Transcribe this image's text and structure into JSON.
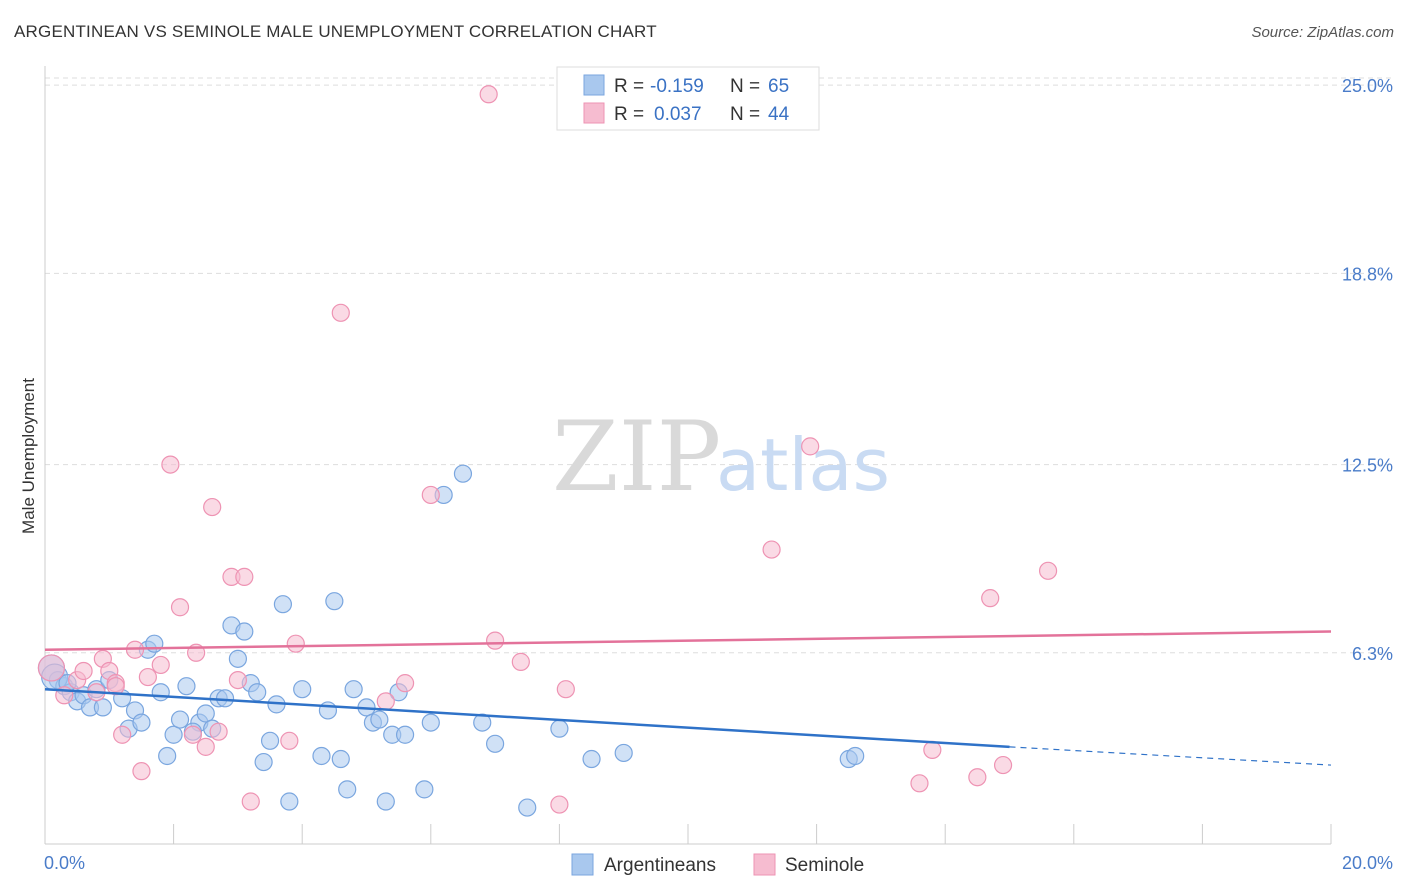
{
  "title": "ARGENTINEAN VS SEMINOLE MALE UNEMPLOYMENT CORRELATION CHART",
  "source": "Source: ZipAtlas.com",
  "watermark": {
    "zip": "ZIP",
    "atlas": "atlas"
  },
  "colors": {
    "blue_fill": "#a9c8ee",
    "blue_stroke": "#7aa6df",
    "blue_line": "#2f72c8",
    "pink_fill": "#f6bcd0",
    "pink_stroke": "#ee93b3",
    "pink_line": "#e3729a",
    "grid": "#dddddd",
    "tick_text": "#4a7cc9"
  },
  "legend": {
    "rows": [
      {
        "r_label": "R =",
        "r_value": "-0.159",
        "n_label": "N =",
        "n_value": "65",
        "series": "blue"
      },
      {
        "r_label": "R =",
        "r_value": "0.037",
        "n_label": "N =",
        "n_value": "44",
        "series": "pink"
      }
    ]
  },
  "chart_data": {
    "type": "scatter",
    "title": "ARGENTINEAN VS SEMINOLE MALE UNEMPLOYMENT CORRELATION CHART",
    "xlabel": "",
    "ylabel": "Male Unemployment",
    "xlim": [
      0,
      20
    ],
    "ylim": [
      0,
      25.5
    ],
    "x_tick_labels": [
      "0.0%",
      "20.0%"
    ],
    "y_ticks": [
      6.3,
      12.5,
      18.8,
      25.0
    ],
    "y_tick_labels": [
      "6.3%",
      "12.5%",
      "18.8%",
      "25.0%"
    ],
    "grid": "horizontal dashed",
    "legend_position": "top-center",
    "series": [
      {
        "name": "Argentineans",
        "color": "blue",
        "R": -0.159,
        "N": 65,
        "trend": {
          "x0": 0,
          "y0": 5.1,
          "x1": 15.0,
          "y1": 3.2,
          "dashed_to_x": 20,
          "dashed_y": 2.6
        },
        "points": [
          [
            0.1,
            5.8
          ],
          [
            0.2,
            5.4
          ],
          [
            0.3,
            5.2
          ],
          [
            0.4,
            5.0
          ],
          [
            0.5,
            4.7
          ],
          [
            0.6,
            4.9
          ],
          [
            0.7,
            4.5
          ],
          [
            0.8,
            5.1
          ],
          [
            0.9,
            4.5
          ],
          [
            1.0,
            5.4
          ],
          [
            1.2,
            4.8
          ],
          [
            1.3,
            3.8
          ],
          [
            1.4,
            4.4
          ],
          [
            1.5,
            4.0
          ],
          [
            1.6,
            6.4
          ],
          [
            1.7,
            6.6
          ],
          [
            1.8,
            5.0
          ],
          [
            1.9,
            2.9
          ],
          [
            2.0,
            3.6
          ],
          [
            2.1,
            4.1
          ],
          [
            2.2,
            5.2
          ],
          [
            2.4,
            4.0
          ],
          [
            2.5,
            4.3
          ],
          [
            2.6,
            3.8
          ],
          [
            2.7,
            4.8
          ],
          [
            2.8,
            4.8
          ],
          [
            2.9,
            7.2
          ],
          [
            3.0,
            6.1
          ],
          [
            3.1,
            7.0
          ],
          [
            3.2,
            5.3
          ],
          [
            3.3,
            5.0
          ],
          [
            3.4,
            2.7
          ],
          [
            3.5,
            3.4
          ],
          [
            3.6,
            4.6
          ],
          [
            3.7,
            7.9
          ],
          [
            3.8,
            1.4
          ],
          [
            4.0,
            5.1
          ],
          [
            4.3,
            2.9
          ],
          [
            4.4,
            4.4
          ],
          [
            4.5,
            8.0
          ],
          [
            4.6,
            2.8
          ],
          [
            4.7,
            1.8
          ],
          [
            4.8,
            5.1
          ],
          [
            5.0,
            4.5
          ],
          [
            5.1,
            4.0
          ],
          [
            5.2,
            4.1
          ],
          [
            5.3,
            1.4
          ],
          [
            5.4,
            3.6
          ],
          [
            5.5,
            5.0
          ],
          [
            5.6,
            3.6
          ],
          [
            5.9,
            1.8
          ],
          [
            6.0,
            4.0
          ],
          [
            6.2,
            11.5
          ],
          [
            6.5,
            12.2
          ],
          [
            6.8,
            4.0
          ],
          [
            7.0,
            3.3
          ],
          [
            7.5,
            1.2
          ],
          [
            8.0,
            3.8
          ],
          [
            8.5,
            2.8
          ],
          [
            9.0,
            3.0
          ],
          [
            12.5,
            2.8
          ],
          [
            12.6,
            2.9
          ],
          [
            0.15,
            5.5
          ],
          [
            0.35,
            5.3
          ],
          [
            2.3,
            3.7
          ]
        ]
      },
      {
        "name": "Seminole",
        "color": "pink",
        "R": 0.037,
        "N": 44,
        "trend": {
          "x0": 0,
          "y0": 6.4,
          "x1": 20,
          "y1": 7.0
        },
        "points": [
          [
            0.1,
            5.8
          ],
          [
            0.3,
            4.9
          ],
          [
            0.5,
            5.4
          ],
          [
            0.6,
            5.7
          ],
          [
            0.8,
            5.0
          ],
          [
            0.9,
            6.1
          ],
          [
            1.0,
            5.7
          ],
          [
            1.1,
            5.3
          ],
          [
            1.2,
            3.6
          ],
          [
            1.4,
            6.4
          ],
          [
            1.5,
            2.4
          ],
          [
            1.6,
            5.5
          ],
          [
            1.8,
            5.9
          ],
          [
            1.95,
            12.5
          ],
          [
            2.1,
            7.8
          ],
          [
            2.3,
            3.6
          ],
          [
            2.35,
            6.3
          ],
          [
            2.5,
            3.2
          ],
          [
            2.6,
            11.1
          ],
          [
            2.7,
            3.7
          ],
          [
            2.9,
            8.8
          ],
          [
            3.0,
            5.4
          ],
          [
            3.1,
            8.8
          ],
          [
            3.2,
            1.4
          ],
          [
            3.8,
            3.4
          ],
          [
            3.9,
            6.6
          ],
          [
            4.6,
            17.5
          ],
          [
            5.3,
            4.7
          ],
          [
            5.6,
            5.3
          ],
          [
            6.0,
            11.5
          ],
          [
            6.9,
            24.7
          ],
          [
            7.0,
            6.7
          ],
          [
            7.4,
            6.0
          ],
          [
            8.0,
            1.3
          ],
          [
            8.1,
            5.1
          ],
          [
            11.3,
            9.7
          ],
          [
            11.9,
            13.1
          ],
          [
            13.6,
            2.0
          ],
          [
            13.8,
            3.1
          ],
          [
            14.5,
            2.2
          ],
          [
            14.7,
            8.1
          ],
          [
            14.9,
            2.6
          ],
          [
            15.6,
            9.0
          ],
          [
            1.1,
            5.2
          ]
        ]
      }
    ]
  },
  "bottom_legend": [
    {
      "label": "Argentineans",
      "series": "blue"
    },
    {
      "label": "Seminole",
      "series": "pink"
    }
  ]
}
